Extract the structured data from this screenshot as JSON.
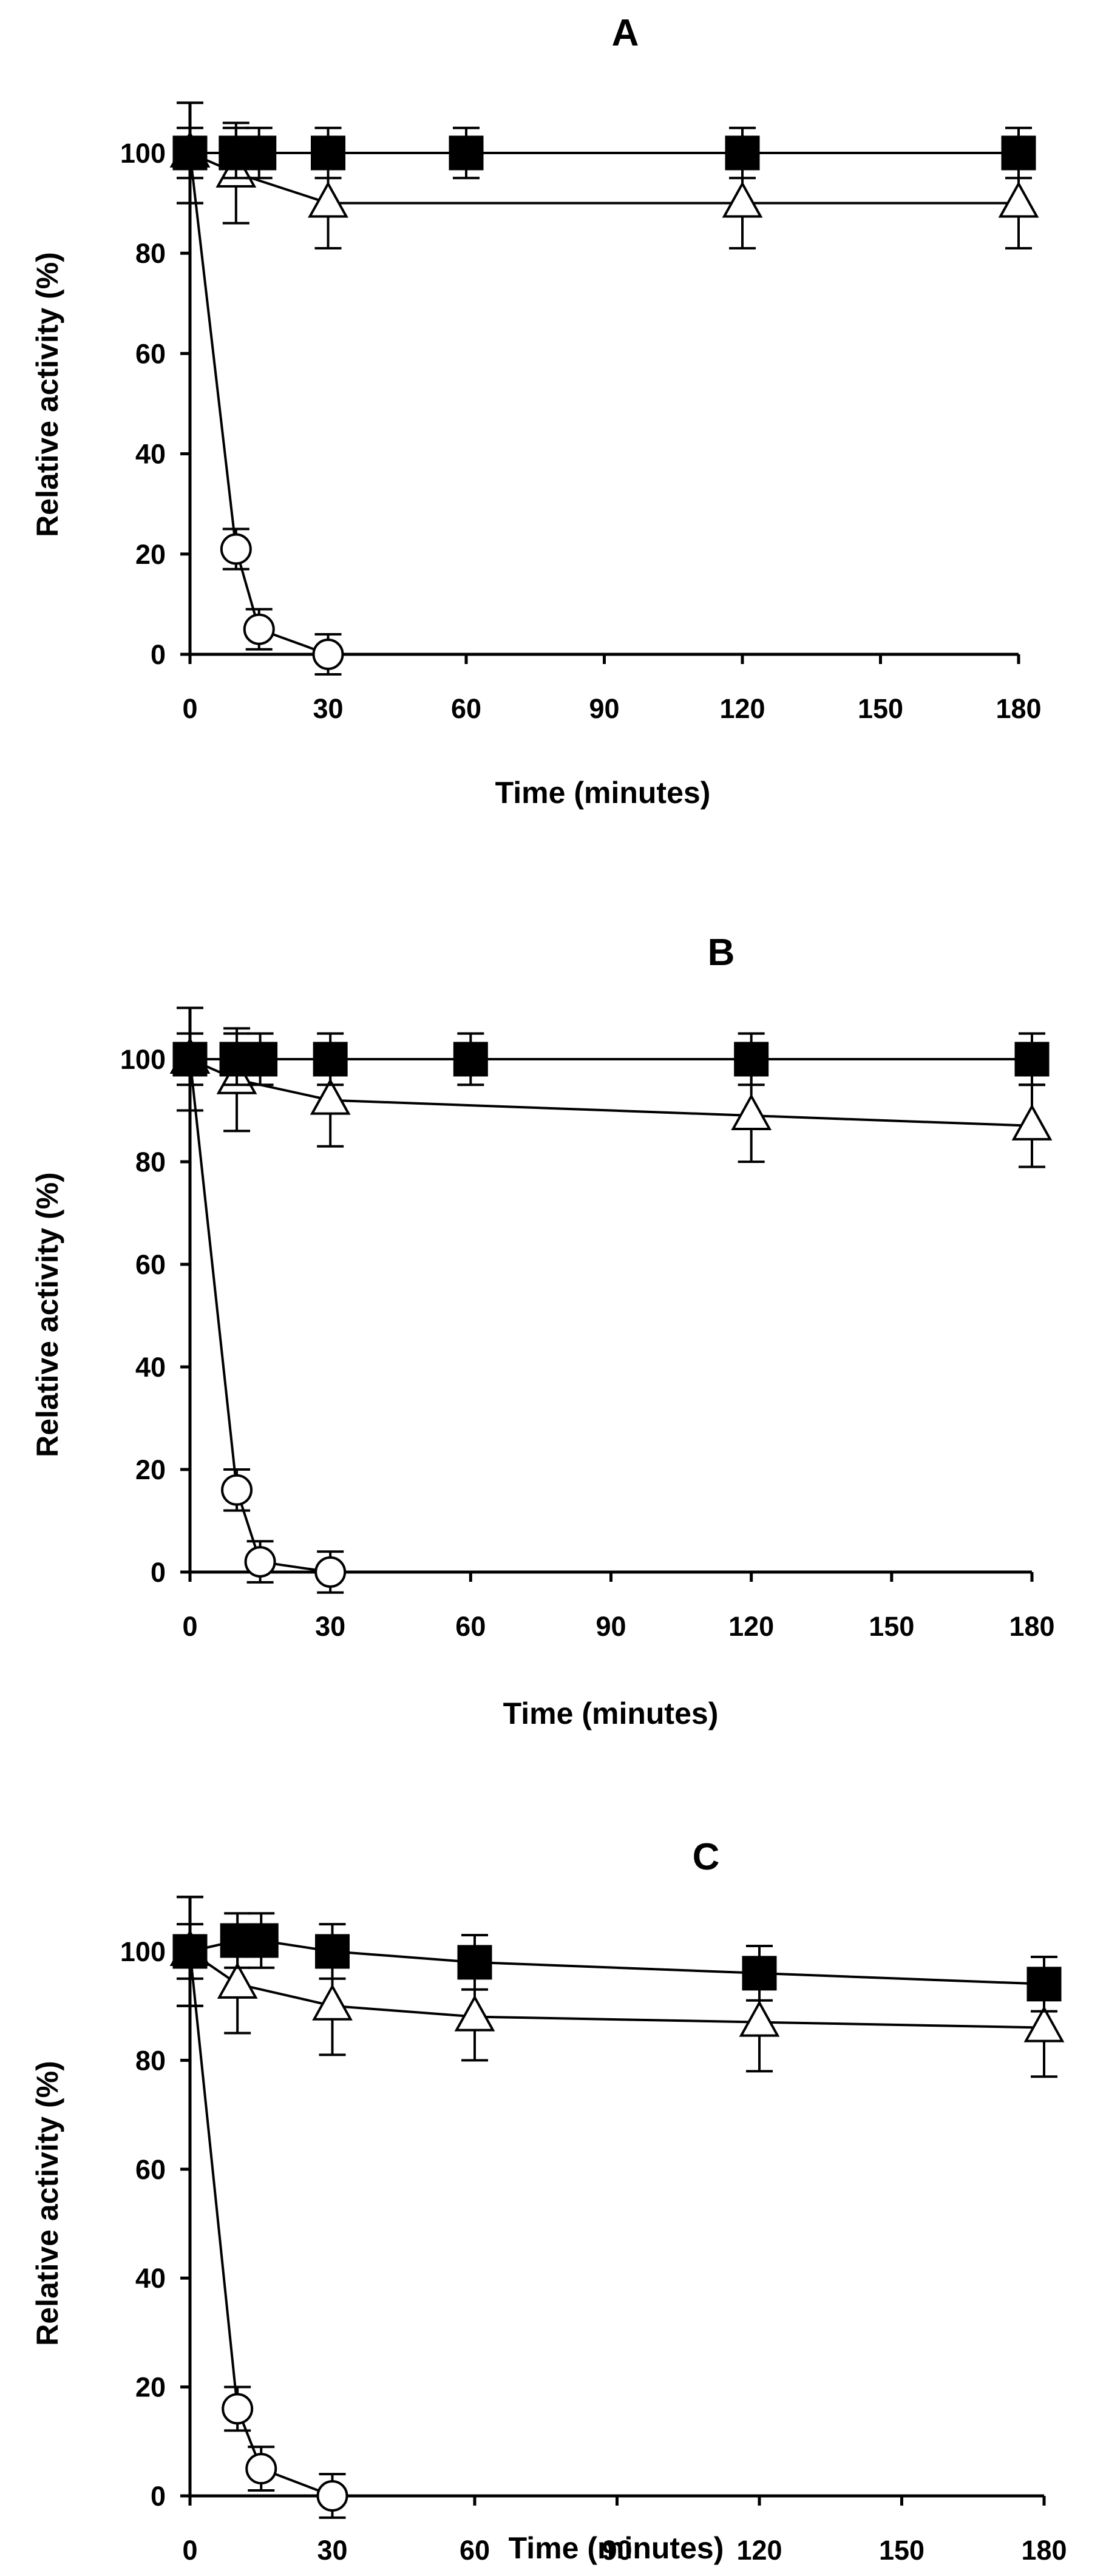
{
  "figure": {
    "foreground": "#000000",
    "background": "#ffffff",
    "panels": [
      {
        "title": "A",
        "xlabel": "Time (minutes)",
        "ylabel": "Relative activity (%)"
      },
      {
        "title": "B",
        "xlabel": "Time (minutes)",
        "ylabel": "Relative activity (%)"
      },
      {
        "title": "C",
        "xlabel": "Time (minutes)",
        "ylabel": "Relative activity (%)"
      }
    ]
  },
  "chart_data": [
    {
      "type": "line",
      "title": "A",
      "xlabel": "Time (minutes)",
      "ylabel": "Relative activity (%)",
      "xlim": [
        0,
        180
      ],
      "ylim": [
        0,
        110
      ],
      "xticks": [
        0,
        30,
        60,
        90,
        120,
        150,
        180
      ],
      "yticks": [
        0,
        20,
        40,
        60,
        80,
        100
      ],
      "legend": "none",
      "series": [
        {
          "name": "filled-square",
          "marker": "square-filled",
          "x": [
            0,
            10,
            15,
            30,
            60,
            120,
            180
          ],
          "y": [
            100,
            100,
            100,
            100,
            100,
            100,
            100
          ],
          "err": [
            5,
            5,
            5,
            5,
            5,
            5,
            5
          ]
        },
        {
          "name": "open-triangle",
          "marker": "triangle-open",
          "x": [
            0,
            10,
            30,
            120,
            180
          ],
          "y": [
            100,
            96,
            90,
            90,
            90
          ],
          "err": [
            10,
            10,
            9,
            9,
            9
          ]
        },
        {
          "name": "open-circle",
          "marker": "circle-open",
          "x": [
            0,
            10,
            15,
            30
          ],
          "y": [
            100,
            21,
            5,
            0
          ],
          "err": [
            10,
            4,
            4,
            4
          ]
        }
      ]
    },
    {
      "type": "line",
      "title": "B",
      "xlabel": "Time (minutes)",
      "ylabel": "Relative activity (%)",
      "xlim": [
        0,
        180
      ],
      "ylim": [
        0,
        110
      ],
      "xticks": [
        0,
        30,
        60,
        90,
        120,
        150,
        180
      ],
      "yticks": [
        0,
        20,
        40,
        60,
        80,
        100
      ],
      "legend": "none",
      "series": [
        {
          "name": "filled-square",
          "marker": "square-filled",
          "x": [
            0,
            10,
            15,
            30,
            60,
            120,
            180
          ],
          "y": [
            100,
            100,
            100,
            100,
            100,
            100,
            100
          ],
          "err": [
            5,
            5,
            5,
            5,
            5,
            5,
            5
          ]
        },
        {
          "name": "open-triangle",
          "marker": "triangle-open",
          "x": [
            0,
            10,
            30,
            120,
            180
          ],
          "y": [
            100,
            96,
            92,
            89,
            87
          ],
          "err": [
            10,
            10,
            9,
            9,
            8
          ]
        },
        {
          "name": "open-circle",
          "marker": "circle-open",
          "x": [
            0,
            10,
            15,
            30
          ],
          "y": [
            100,
            16,
            2,
            0
          ],
          "err": [
            10,
            4,
            4,
            4
          ]
        }
      ]
    },
    {
      "type": "line",
      "title": "C",
      "xlabel": "Time (minutes)",
      "ylabel": "Relative activity (%)",
      "xlim": [
        0,
        180
      ],
      "ylim": [
        0,
        110
      ],
      "xticks": [
        0,
        30,
        60,
        90,
        120,
        150,
        180
      ],
      "yticks": [
        0,
        20,
        40,
        60,
        80,
        100
      ],
      "legend": "none",
      "series": [
        {
          "name": "filled-square",
          "marker": "square-filled",
          "x": [
            0,
            10,
            15,
            30,
            60,
            120,
            180
          ],
          "y": [
            100,
            102,
            102,
            100,
            98,
            96,
            94
          ],
          "err": [
            5,
            5,
            5,
            5,
            5,
            5,
            5
          ]
        },
        {
          "name": "open-triangle",
          "marker": "triangle-open",
          "x": [
            0,
            10,
            30,
            60,
            120,
            180
          ],
          "y": [
            100,
            94,
            90,
            88,
            87,
            86
          ],
          "err": [
            10,
            9,
            9,
            8,
            9,
            9
          ]
        },
        {
          "name": "open-circle",
          "marker": "circle-open",
          "x": [
            0,
            10,
            15,
            30
          ],
          "y": [
            100,
            16,
            5,
            0
          ],
          "err": [
            10,
            4,
            4,
            4
          ]
        }
      ]
    }
  ]
}
